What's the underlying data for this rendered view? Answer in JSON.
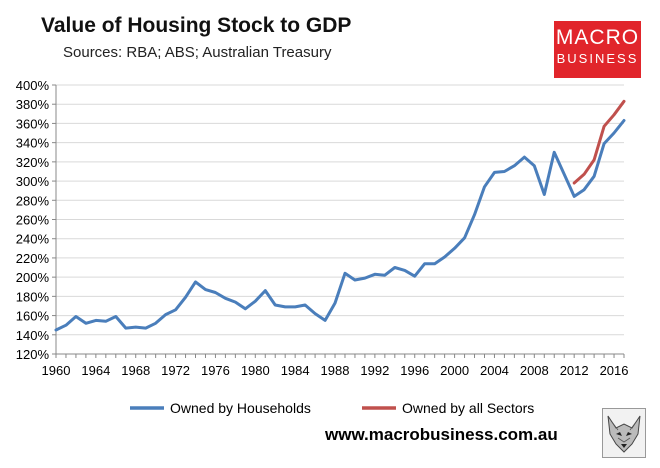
{
  "page": {
    "title": "Value of Housing Stock to GDP",
    "subtitle": "Sources: RBA; ABS; Australian Treasury",
    "logo_line1": "MACRO",
    "logo_line2": "BUSINESS",
    "website": "www.macrobusiness.com.au",
    "fox_icon": "fox-logo-icon"
  },
  "colors": {
    "households": "#4a7ebb",
    "all_sectors": "#c0504d",
    "logo_bg": "#e1252b",
    "grid": "#d9d9d9"
  },
  "chart_data": {
    "type": "line",
    "title": "Value of Housing Stock to GDP",
    "xlabel": "",
    "ylabel": "",
    "xlim": [
      1960,
      2017
    ],
    "ylim": [
      120,
      400
    ],
    "y_ticks": [
      120,
      140,
      160,
      180,
      200,
      220,
      240,
      260,
      280,
      300,
      320,
      340,
      360,
      380,
      400
    ],
    "y_tick_labels": [
      "120%",
      "140%",
      "160%",
      "180%",
      "200%",
      "220%",
      "240%",
      "260%",
      "280%",
      "300%",
      "320%",
      "340%",
      "360%",
      "380%",
      "400%"
    ],
    "x_ticks": [
      1960,
      1964,
      1968,
      1972,
      1976,
      1980,
      1984,
      1988,
      1992,
      1996,
      2000,
      2004,
      2008,
      2012,
      2016
    ],
    "x_tick_labels": [
      "1960",
      "1964",
      "1968",
      "1972",
      "1976",
      "1980",
      "1984",
      "1988",
      "1992",
      "1996",
      "2000",
      "2004",
      "2008",
      "2012",
      "2016"
    ],
    "grid": true,
    "legend_position": "bottom",
    "series": [
      {
        "name": "Owned by Households",
        "color": "#4a7ebb",
        "x": [
          1960,
          1961,
          1962,
          1963,
          1964,
          1965,
          1966,
          1967,
          1968,
          1969,
          1970,
          1971,
          1972,
          1973,
          1974,
          1975,
          1976,
          1977,
          1978,
          1979,
          1980,
          1981,
          1982,
          1983,
          1984,
          1985,
          1986,
          1987,
          1988,
          1989,
          1990,
          1991,
          1992,
          1993,
          1994,
          1995,
          1996,
          1997,
          1998,
          1999,
          2000,
          2001,
          2002,
          2003,
          2004,
          2005,
          2006,
          2007,
          2008,
          2009,
          2010,
          2011,
          2012,
          2013,
          2014,
          2015,
          2016,
          2017
        ],
        "y": [
          145,
          150,
          159,
          152,
          155,
          154,
          159,
          147,
          148,
          147,
          152,
          161,
          166,
          179,
          195,
          187,
          184,
          178,
          174,
          167,
          175,
          186,
          171,
          169,
          169,
          171,
          162,
          155,
          173,
          204,
          197,
          199,
          203,
          202,
          210,
          207,
          201,
          214,
          214,
          221,
          230,
          241,
          265,
          294,
          309,
          310,
          316,
          325,
          316,
          286,
          330,
          307,
          284,
          291,
          305,
          339,
          350,
          363
        ]
      },
      {
        "name": "Owned by all Sectors",
        "color": "#c0504d",
        "x": [
          2012,
          2013,
          2014,
          2015,
          2016,
          2017
        ],
        "y": [
          298,
          307,
          322,
          357,
          369,
          383
        ]
      }
    ]
  }
}
